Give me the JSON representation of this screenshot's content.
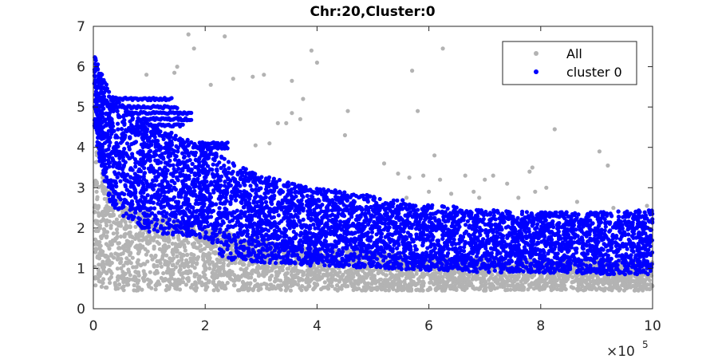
{
  "chart_data": {
    "type": "scatter",
    "title": "Chr:20,Cluster:0",
    "xlabel": "",
    "ylabel": "",
    "xlim": [
      0,
      1000000
    ],
    "ylim": [
      0,
      7
    ],
    "x_ticks": [
      0,
      200000,
      400000,
      600000,
      800000,
      1000000
    ],
    "x_tick_labels": [
      "0",
      "2",
      "4",
      "6",
      "8",
      "10"
    ],
    "x_exponent_label": "×10",
    "x_exponent_power": "5",
    "y_ticks": [
      0,
      1,
      2,
      3,
      4,
      5,
      6,
      7
    ],
    "y_tick_labels": [
      "0",
      "1",
      "2",
      "3",
      "4",
      "5",
      "6",
      "7"
    ],
    "grid": false,
    "legend": {
      "placement": "top-right",
      "entries": [
        "All",
        "cluster 0"
      ]
    },
    "series": [
      {
        "name": "All",
        "color": "#b3b3b3",
        "description": "dense band plus sparse outliers",
        "band": {
          "x": [
            2000,
            10000,
            30000,
            60000,
            100000,
            150000,
            200000,
            250000,
            300000,
            400000,
            500000,
            600000,
            700000,
            800000,
            900000,
            1000000
          ],
          "y_low": [
            0.5,
            0.55,
            0.5,
            0.45,
            0.45,
            0.45,
            0.45,
            0.45,
            0.45,
            0.45,
            0.45,
            0.45,
            0.45,
            0.45,
            0.45,
            0.45
          ],
          "y_high": [
            4.6,
            3.6,
            2.9,
            2.6,
            2.4,
            2.2,
            2.0,
            1.9,
            1.7,
            1.5,
            1.4,
            1.3,
            1.25,
            1.2,
            1.2,
            1.2
          ]
        },
        "outliers": [
          [
            170000,
            6.8
          ],
          [
            235000,
            6.75
          ],
          [
            180000,
            6.45
          ],
          [
            150000,
            6.0
          ],
          [
            145000,
            5.85
          ],
          [
            95000,
            5.8
          ],
          [
            250000,
            5.7
          ],
          [
            210000,
            5.55
          ],
          [
            285000,
            5.75
          ],
          [
            305000,
            5.8
          ],
          [
            355000,
            5.65
          ],
          [
            375000,
            5.2
          ],
          [
            390000,
            6.4
          ],
          [
            400000,
            6.1
          ],
          [
            455000,
            4.9
          ],
          [
            570000,
            5.9
          ],
          [
            580000,
            4.9
          ],
          [
            625000,
            6.45
          ],
          [
            315000,
            4.1
          ],
          [
            330000,
            4.6
          ],
          [
            345000,
            4.6
          ],
          [
            355000,
            4.85
          ],
          [
            370000,
            4.7
          ],
          [
            290000,
            4.05
          ],
          [
            450000,
            4.3
          ],
          [
            520000,
            3.6
          ],
          [
            545000,
            3.35
          ],
          [
            565000,
            3.25
          ],
          [
            590000,
            3.3
          ],
          [
            610000,
            3.8
          ],
          [
            620000,
            3.2
          ],
          [
            665000,
            3.3
          ],
          [
            680000,
            2.9
          ],
          [
            700000,
            3.2
          ],
          [
            715000,
            3.3
          ],
          [
            740000,
            3.1
          ],
          [
            780000,
            3.4
          ],
          [
            785000,
            3.5
          ],
          [
            790000,
            2.9
          ],
          [
            825000,
            4.45
          ],
          [
            865000,
            2.65
          ],
          [
            905000,
            3.9
          ],
          [
            920000,
            3.55
          ],
          [
            930000,
            2.5
          ],
          [
            990000,
            2.55
          ],
          [
            810000,
            3.0
          ],
          [
            760000,
            2.75
          ],
          [
            690000,
            2.75
          ],
          [
            640000,
            2.85
          ],
          [
            600000,
            2.9
          ],
          [
            560000,
            2.75
          ]
        ]
      },
      {
        "name": "cluster 0",
        "color": "#0000ff",
        "description": "dense band",
        "band": {
          "x": [
            2000,
            10000,
            30000,
            60000,
            100000,
            150000,
            200000,
            230000,
            250000,
            300000,
            400000,
            500000,
            600000,
            700000,
            800000,
            900000,
            1000000
          ],
          "y_low": [
            4.5,
            3.7,
            2.6,
            2.2,
            1.9,
            1.8,
            1.75,
            1.3,
            1.2,
            1.15,
            1.05,
            1.0,
            0.95,
            0.9,
            0.9,
            0.85,
            0.85
          ],
          "y_high": [
            6.3,
            6.0,
            5.4,
            5.0,
            4.6,
            4.3,
            4.0,
            3.8,
            3.6,
            3.3,
            3.0,
            2.8,
            2.6,
            2.45,
            2.4,
            2.4,
            2.45
          ]
        },
        "streaks": [
          [
            40000,
            140000,
            5.2
          ],
          [
            40000,
            150000,
            5.0
          ],
          [
            60000,
            175000,
            4.85
          ],
          [
            80000,
            175000,
            4.7
          ],
          [
            100000,
            160000,
            4.55
          ],
          [
            190000,
            240000,
            4.1
          ],
          [
            180000,
            240000,
            4.0
          ]
        ]
      }
    ]
  }
}
